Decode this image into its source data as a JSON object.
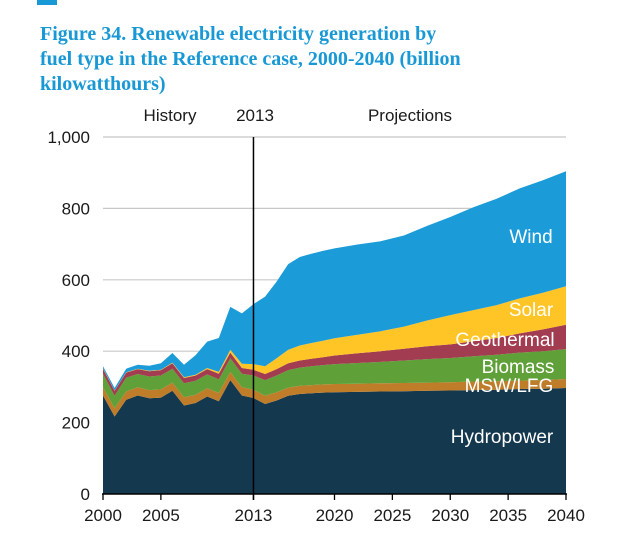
{
  "figure": {
    "accent_color": "#1898D4",
    "title_lines": [
      "Figure 34. Renewable electricity generation by",
      "fuel type in the Reference case, 2000-2040 (billion",
      "kilowatthours)"
    ],
    "title_full": "Figure 34. Renewable electricity generation by fuel type in the Reference case, 2000-2040 (billion kilowatthours)"
  },
  "header": {
    "history": "History",
    "divider_year": "2013",
    "projections": "Projections"
  },
  "chart_data": {
    "type": "area",
    "stacked": true,
    "title": "Renewable electricity generation by fuel type in the Reference case, 2000-2040",
    "units": "billion kilowatthours",
    "xlabel": "",
    "ylabel": "billion kilowatthours",
    "xlim": [
      2000,
      2040
    ],
    "ylim": [
      0,
      1000
    ],
    "grid": "horizontal",
    "gridline_color": "#C8C8C8",
    "axis_color": "#000000",
    "divider_year": 2013,
    "legend_position": "labels-on-chart",
    "x": [
      2000,
      2001,
      2002,
      2003,
      2004,
      2005,
      2006,
      2007,
      2008,
      2009,
      2010,
      2011,
      2012,
      2013,
      2014,
      2015,
      2016,
      2017,
      2018,
      2019,
      2020,
      2022,
      2024,
      2026,
      2028,
      2030,
      2032,
      2034,
      2036,
      2038,
      2040
    ],
    "series": [
      {
        "name": "Hydropower",
        "color": "#14384E",
        "values": [
          276,
          217,
          264,
          276,
          268,
          270,
          289,
          248,
          255,
          273,
          260,
          319,
          276,
          269,
          252,
          262,
          275,
          280,
          282,
          284,
          285,
          286,
          287,
          288,
          289,
          290,
          291,
          292,
          294,
          295,
          297
        ],
        "label": {
          "text": "Hydropower",
          "x": 502,
          "y": 443,
          "color": "#ffffff"
        }
      },
      {
        "name": "MSW/LFG",
        "color": "#BF7D2A",
        "values": [
          23,
          23,
          23,
          23,
          23,
          23,
          23,
          23,
          23,
          23,
          23,
          23,
          23,
          23,
          23,
          23,
          23,
          23,
          23,
          23,
          23,
          23,
          23,
          23,
          23,
          23,
          24,
          24,
          24,
          24,
          25
        ],
        "label": {
          "text": "MSW/LFG",
          "x": 509,
          "y": 392,
          "color": "#ffffff"
        }
      },
      {
        "name": "Biomass",
        "color": "#5FA038",
        "values": [
          38,
          35,
          39,
          37,
          38,
          39,
          39,
          39,
          39,
          39,
          38,
          38,
          38,
          40,
          44,
          47,
          49,
          51,
          53,
          54,
          56,
          58,
          60,
          63,
          66,
          68,
          71,
          74,
          78,
          81,
          84
        ],
        "label": {
          "text": "Biomass",
          "x": 518,
          "y": 373,
          "color": "#ffffff"
        }
      },
      {
        "name": "Geothermal",
        "color": "#A23C50",
        "values": [
          14,
          14,
          14,
          14,
          15,
          15,
          15,
          15,
          15,
          15,
          16,
          16,
          16,
          16,
          17,
          18,
          19,
          20,
          21,
          22,
          24,
          27,
          30,
          33,
          36,
          38,
          42,
          47,
          54,
          61,
          68
        ],
        "label": {
          "text": "Geothermal",
          "x": 505,
          "y": 346,
          "color": "#ffffff"
        }
      },
      {
        "name": "Solar",
        "color": "#FFC425",
        "values": [
          1,
          1,
          1,
          1,
          1,
          1,
          2,
          2,
          2,
          3,
          5,
          8,
          12,
          16,
          22,
          30,
          38,
          42,
          44,
          46,
          48,
          52,
          56,
          62,
          72,
          82,
          87,
          92,
          98,
          103,
          108
        ],
        "label": {
          "text": "Solar",
          "x": 531,
          "y": 316,
          "color": "#ffffff"
        }
      },
      {
        "name": "Wind",
        "color": "#1B9CD8",
        "values": [
          6,
          7,
          10,
          11,
          14,
          18,
          27,
          35,
          55,
          74,
          95,
          120,
          141,
          168,
          195,
          215,
          240,
          248,
          250,
          252,
          252,
          253,
          252,
          255,
          265,
          275,
          288,
          298,
          308,
          315,
          322
        ],
        "label": {
          "text": "Wind",
          "x": 531,
          "y": 243,
          "color": "#ffffff"
        }
      }
    ],
    "y_ticks": [
      {
        "value": 0,
        "label": "0"
      },
      {
        "value": 200,
        "label": "200"
      },
      {
        "value": 400,
        "label": "400"
      },
      {
        "value": 600,
        "label": "600"
      },
      {
        "value": 800,
        "label": "800"
      },
      {
        "value": 1000,
        "label": "1,000"
      }
    ],
    "x_ticks": [
      {
        "value": 2000,
        "label": "2000"
      },
      {
        "value": 2005,
        "label": "2005"
      },
      {
        "value": 2013,
        "label": "2013"
      },
      {
        "value": 2020,
        "label": "2020"
      },
      {
        "value": 2025,
        "label": "2025"
      },
      {
        "value": 2030,
        "label": "2030"
      },
      {
        "value": 2035,
        "label": "2035"
      },
      {
        "value": 2040,
        "label": "2040"
      }
    ]
  }
}
